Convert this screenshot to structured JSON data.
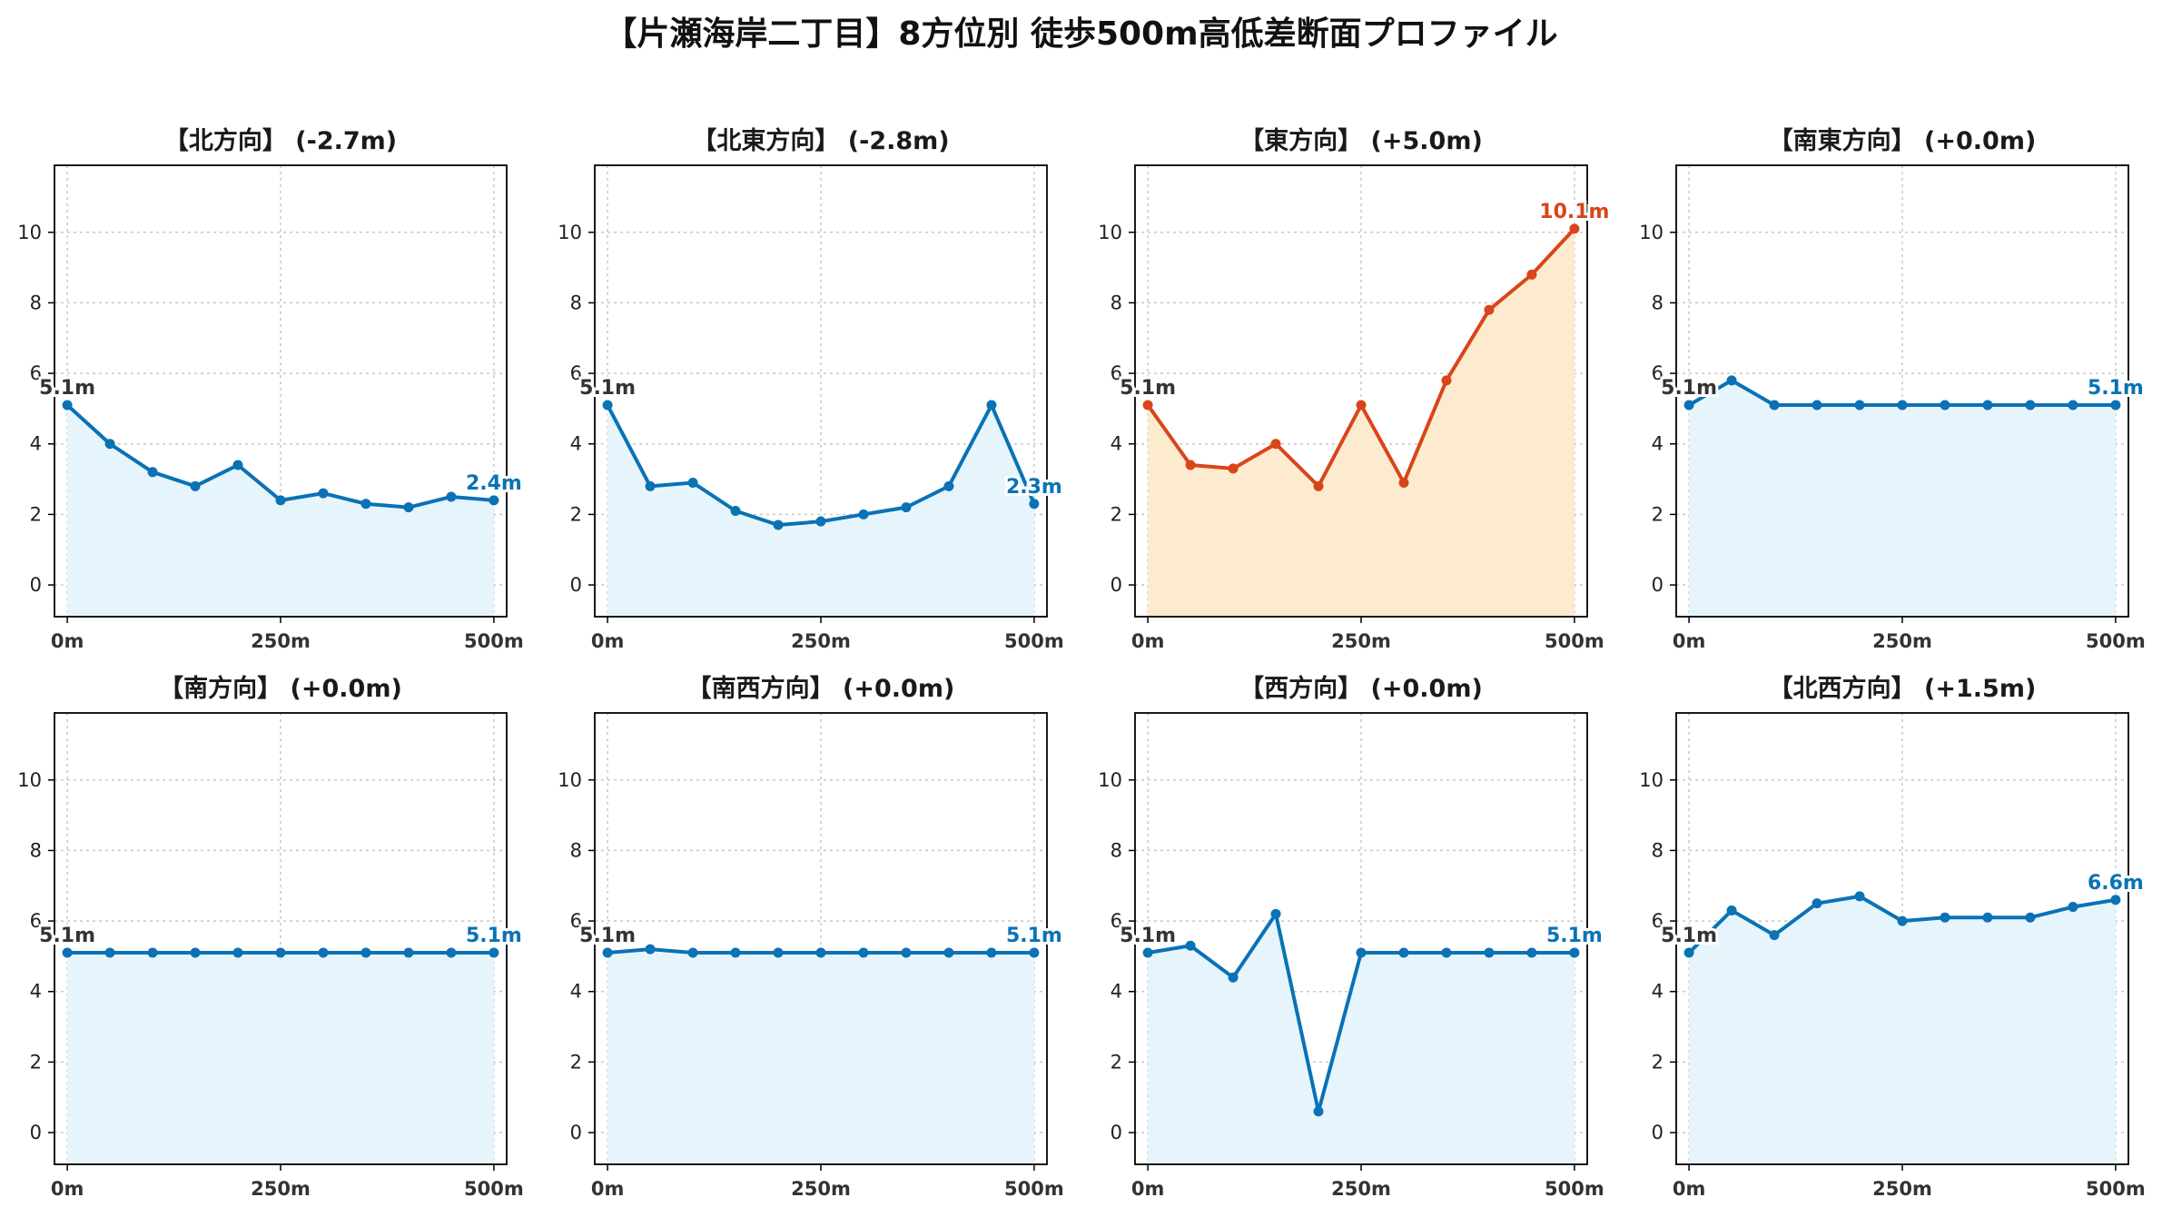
{
  "suptitle": "【片瀬海岸二丁目】8方位別 徒歩500m高低差断面プロファイル",
  "colors": {
    "blue_line": "#0a72b5",
    "blue_fill": "#e6f5fb",
    "orange_line": "#d9451a",
    "orange_fill": "#fdebd0",
    "start_label": "#333333"
  },
  "chart_data": [
    {
      "type": "area",
      "title": "【北方向】 (-2.7m)",
      "x": [
        0,
        50,
        100,
        150,
        200,
        250,
        300,
        350,
        400,
        450,
        500
      ],
      "values": [
        5.1,
        4.0,
        3.2,
        2.8,
        3.4,
        2.4,
        2.6,
        2.3,
        2.2,
        2.5,
        2.4
      ],
      "start_label": "5.1m",
      "end_label": "2.4m",
      "highlight": false,
      "xticks": [
        "0m",
        "250m",
        "500m"
      ],
      "yticks": [
        "0",
        "2",
        "4",
        "6",
        "8",
        "10"
      ],
      "xlim": [
        -15,
        515
      ],
      "ylim": [
        -0.9,
        11.9
      ],
      "grid": true
    },
    {
      "type": "area",
      "title": "【北東方向】 (-2.8m)",
      "x": [
        0,
        50,
        100,
        150,
        200,
        250,
        300,
        350,
        400,
        450,
        500
      ],
      "values": [
        5.1,
        2.8,
        2.9,
        2.1,
        1.7,
        1.8,
        2.0,
        2.2,
        2.8,
        5.1,
        2.3
      ],
      "start_label": "5.1m",
      "end_label": "2.3m",
      "highlight": false,
      "xticks": [
        "0m",
        "250m",
        "500m"
      ],
      "yticks": [
        "0",
        "2",
        "4",
        "6",
        "8",
        "10"
      ],
      "xlim": [
        -15,
        515
      ],
      "ylim": [
        -0.9,
        11.9
      ],
      "grid": true
    },
    {
      "type": "area",
      "title": "【東方向】 (+5.0m)",
      "x": [
        0,
        50,
        100,
        150,
        200,
        250,
        300,
        350,
        400,
        450,
        500
      ],
      "values": [
        5.1,
        3.4,
        3.3,
        4.0,
        2.8,
        5.1,
        2.9,
        5.8,
        7.8,
        8.8,
        10.1
      ],
      "start_label": "5.1m",
      "end_label": "10.1m",
      "highlight": true,
      "xticks": [
        "0m",
        "250m",
        "500m"
      ],
      "yticks": [
        "0",
        "2",
        "4",
        "6",
        "8",
        "10"
      ],
      "xlim": [
        -15,
        515
      ],
      "ylim": [
        -0.9,
        11.9
      ],
      "grid": true
    },
    {
      "type": "area",
      "title": "【南東方向】 (+0.0m)",
      "x": [
        0,
        50,
        100,
        150,
        200,
        250,
        300,
        350,
        400,
        450,
        500
      ],
      "values": [
        5.1,
        5.8,
        5.1,
        5.1,
        5.1,
        5.1,
        5.1,
        5.1,
        5.1,
        5.1,
        5.1
      ],
      "start_label": "5.1m",
      "end_label": "5.1m",
      "highlight": false,
      "xticks": [
        "0m",
        "250m",
        "500m"
      ],
      "yticks": [
        "0",
        "2",
        "4",
        "6",
        "8",
        "10"
      ],
      "xlim": [
        -15,
        515
      ],
      "ylim": [
        -0.9,
        11.9
      ],
      "grid": true
    },
    {
      "type": "area",
      "title": "【南方向】 (+0.0m)",
      "x": [
        0,
        50,
        100,
        150,
        200,
        250,
        300,
        350,
        400,
        450,
        500
      ],
      "values": [
        5.1,
        5.1,
        5.1,
        5.1,
        5.1,
        5.1,
        5.1,
        5.1,
        5.1,
        5.1,
        5.1
      ],
      "start_label": "5.1m",
      "end_label": "5.1m",
      "highlight": false,
      "xticks": [
        "0m",
        "250m",
        "500m"
      ],
      "yticks": [
        "0",
        "2",
        "4",
        "6",
        "8",
        "10"
      ],
      "xlim": [
        -15,
        515
      ],
      "ylim": [
        -0.9,
        11.9
      ],
      "grid": true
    },
    {
      "type": "area",
      "title": "【南西方向】 (+0.0m)",
      "x": [
        0,
        50,
        100,
        150,
        200,
        250,
        300,
        350,
        400,
        450,
        500
      ],
      "values": [
        5.1,
        5.2,
        5.1,
        5.1,
        5.1,
        5.1,
        5.1,
        5.1,
        5.1,
        5.1,
        5.1
      ],
      "start_label": "5.1m",
      "end_label": "5.1m",
      "highlight": false,
      "xticks": [
        "0m",
        "250m",
        "500m"
      ],
      "yticks": [
        "0",
        "2",
        "4",
        "6",
        "8",
        "10"
      ],
      "xlim": [
        -15,
        515
      ],
      "ylim": [
        -0.9,
        11.9
      ],
      "grid": true
    },
    {
      "type": "area",
      "title": "【西方向】 (+0.0m)",
      "x": [
        0,
        50,
        100,
        150,
        200,
        250,
        300,
        350,
        400,
        450,
        500
      ],
      "values": [
        5.1,
        5.3,
        4.4,
        6.2,
        0.6,
        5.1,
        5.1,
        5.1,
        5.1,
        5.1,
        5.1
      ],
      "start_label": "5.1m",
      "end_label": "5.1m",
      "highlight": false,
      "xticks": [
        "0m",
        "250m",
        "500m"
      ],
      "yticks": [
        "0",
        "2",
        "4",
        "6",
        "8",
        "10"
      ],
      "xlim": [
        -15,
        515
      ],
      "ylim": [
        -0.9,
        11.9
      ],
      "grid": true
    },
    {
      "type": "area",
      "title": "【北西方向】 (+1.5m)",
      "x": [
        0,
        50,
        100,
        150,
        200,
        250,
        300,
        350,
        400,
        450,
        500
      ],
      "values": [
        5.1,
        6.3,
        5.6,
        6.5,
        6.7,
        6.0,
        6.1,
        6.1,
        6.1,
        6.4,
        6.6
      ],
      "start_label": "5.1m",
      "end_label": "6.6m",
      "highlight": false,
      "xticks": [
        "0m",
        "250m",
        "500m"
      ],
      "yticks": [
        "0",
        "2",
        "4",
        "6",
        "8",
        "10"
      ],
      "xlim": [
        -15,
        515
      ],
      "ylim": [
        -0.9,
        11.9
      ],
      "grid": true
    }
  ]
}
